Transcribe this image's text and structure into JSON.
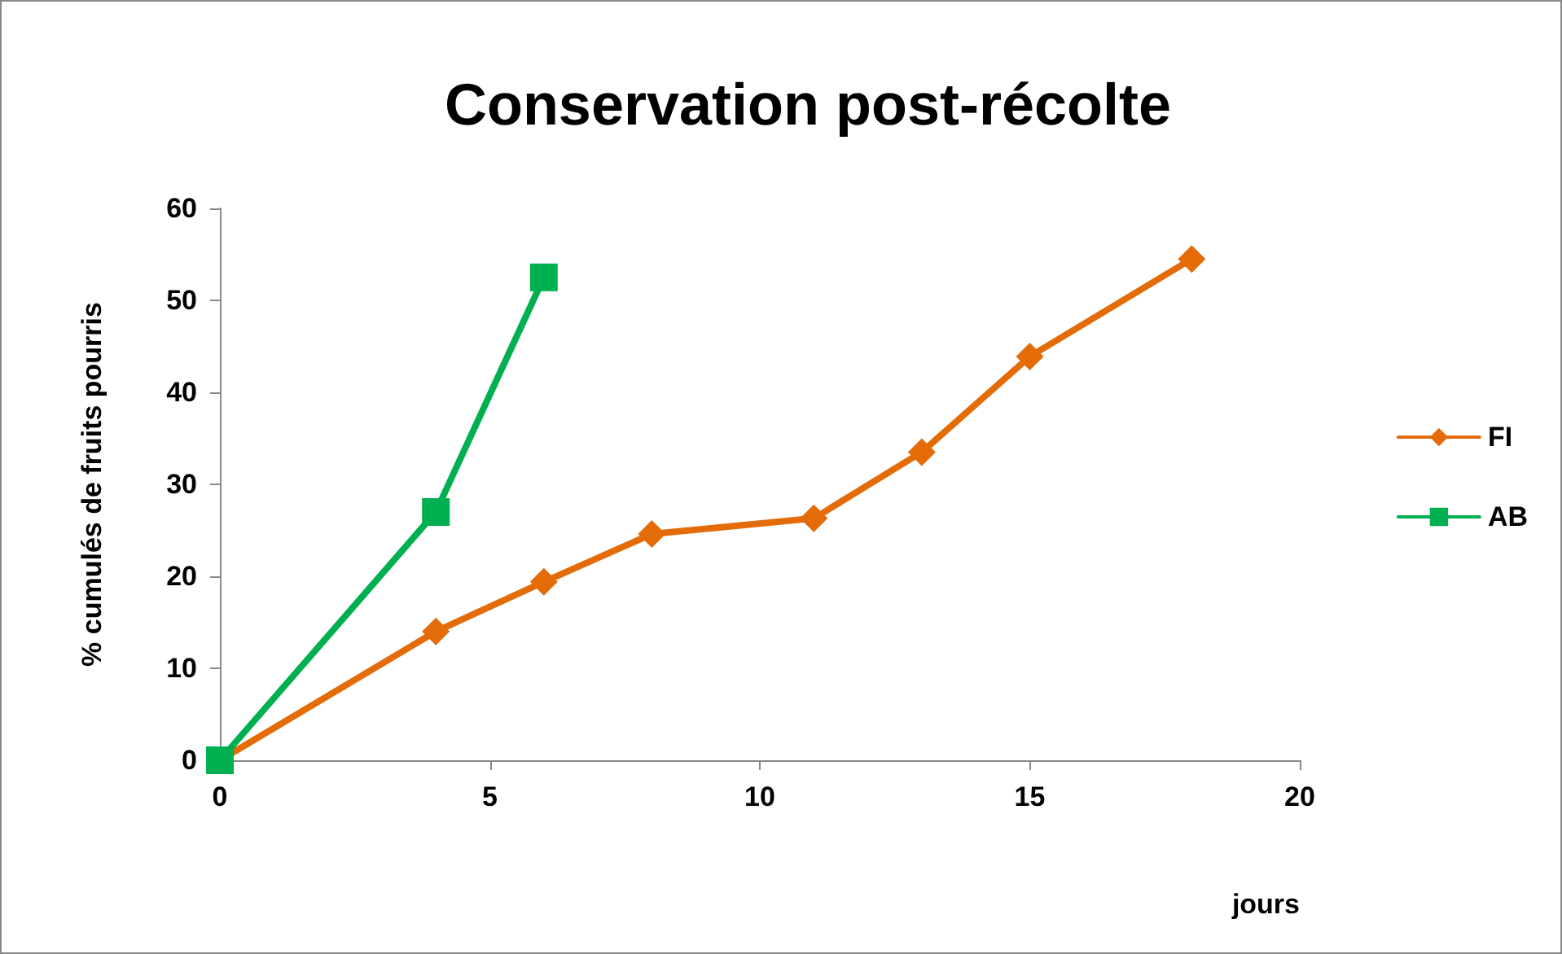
{
  "chart_data": {
    "type": "line",
    "title": "Conservation post-récolte",
    "xlabel": "jours",
    "ylabel": "% cumulés de fruits pourris",
    "series": [
      {
        "name": "FI",
        "color": "#e36c09",
        "marker": "diamond",
        "x": [
          0,
          4,
          6,
          8,
          11,
          13,
          15,
          18
        ],
        "values": [
          0,
          14,
          19.4,
          24.6,
          26.3,
          33.5,
          43.9,
          54.5
        ]
      },
      {
        "name": "AB",
        "color": "#00b050",
        "marker": "square",
        "x": [
          0,
          4,
          6
        ],
        "values": [
          0,
          27,
          52.5
        ]
      }
    ],
    "xlim": [
      0,
      20
    ],
    "xticks": [
      0,
      5,
      10,
      15,
      20
    ],
    "ylim": [
      0,
      60
    ],
    "yticks": [
      0,
      10,
      20,
      30,
      40,
      50,
      60
    ],
    "grid": false,
    "legend": "right",
    "line_style": "solid"
  }
}
